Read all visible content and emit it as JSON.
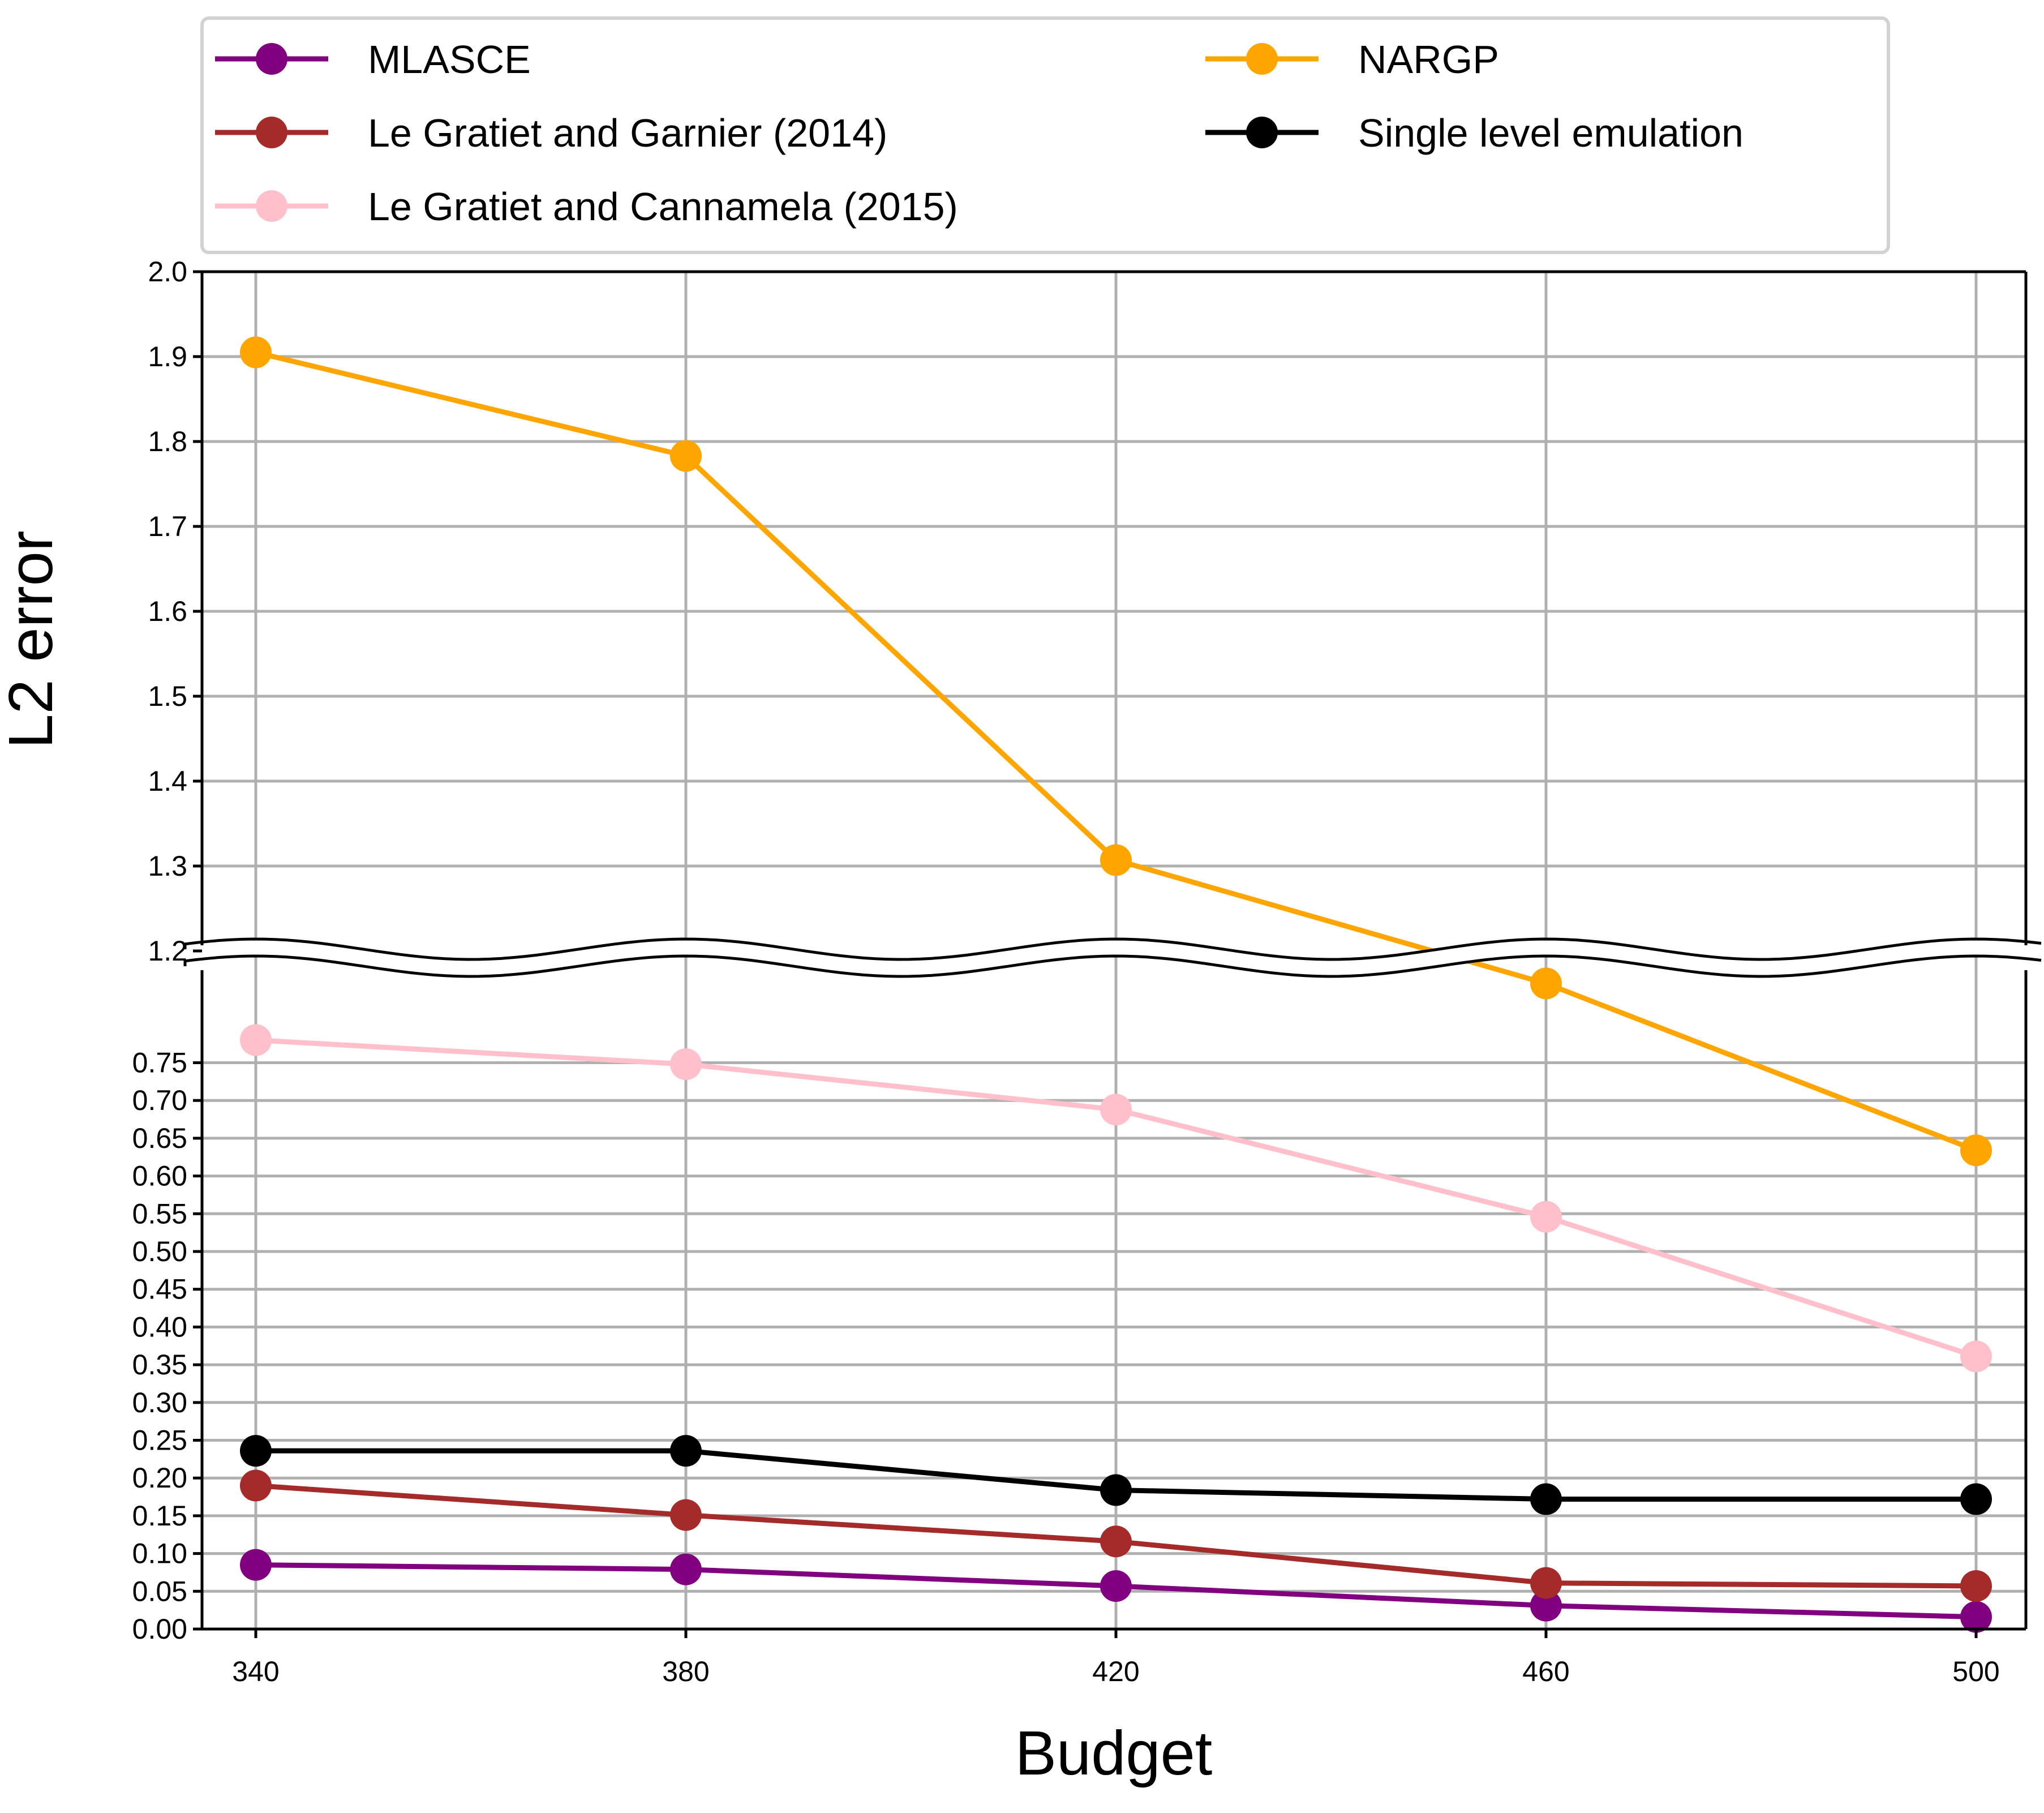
{
  "chart_data": {
    "type": "line",
    "title": "",
    "xlabel": "Budget",
    "ylabel": "L2 error",
    "x": [
      340,
      380,
      420,
      460,
      500
    ],
    "x_ticks": [
      "340",
      "380",
      "420",
      "460",
      "500"
    ],
    "broken_y_axis": {
      "lower": {
        "ylim": [
          0,
          0.9
        ],
        "ticks": [
          "0.00",
          "0.05",
          "0.10",
          "0.15",
          "0.20",
          "0.25",
          "0.30",
          "0.35",
          "0.40",
          "0.45",
          "0.50",
          "0.55",
          "0.60",
          "0.65",
          "0.70",
          "0.75"
        ]
      },
      "upper": {
        "ylim": [
          1.2,
          2.0
        ],
        "ticks": [
          "1.2",
          "1.3",
          "1.4",
          "1.5",
          "1.6",
          "1.7",
          "1.8",
          "1.9",
          "2.0"
        ]
      }
    },
    "grid": true,
    "legend_position": "top",
    "series": [
      {
        "name": "MLASCE",
        "color": "#800080",
        "values": [
          0.085,
          0.079,
          0.057,
          0.031,
          0.016
        ]
      },
      {
        "name": "Le Gratiet and Garnier (2014)",
        "color": "#a52a2a",
        "values": [
          0.19,
          0.151,
          0.116,
          0.061,
          0.057
        ]
      },
      {
        "name": "Le Gratiet and Cannamela (2015)",
        "color": "#ffc0cb",
        "values": [
          0.78,
          0.748,
          0.688,
          0.546,
          0.361
        ]
      },
      {
        "name": "NARGP",
        "color": "#ffa500",
        "values": [
          1.905,
          1.783,
          1.307,
          0.855,
          0.634
        ]
      },
      {
        "name": "Single level emulation",
        "color": "#000000",
        "values": [
          0.236,
          0.236,
          0.184,
          0.172,
          0.172
        ]
      }
    ]
  }
}
